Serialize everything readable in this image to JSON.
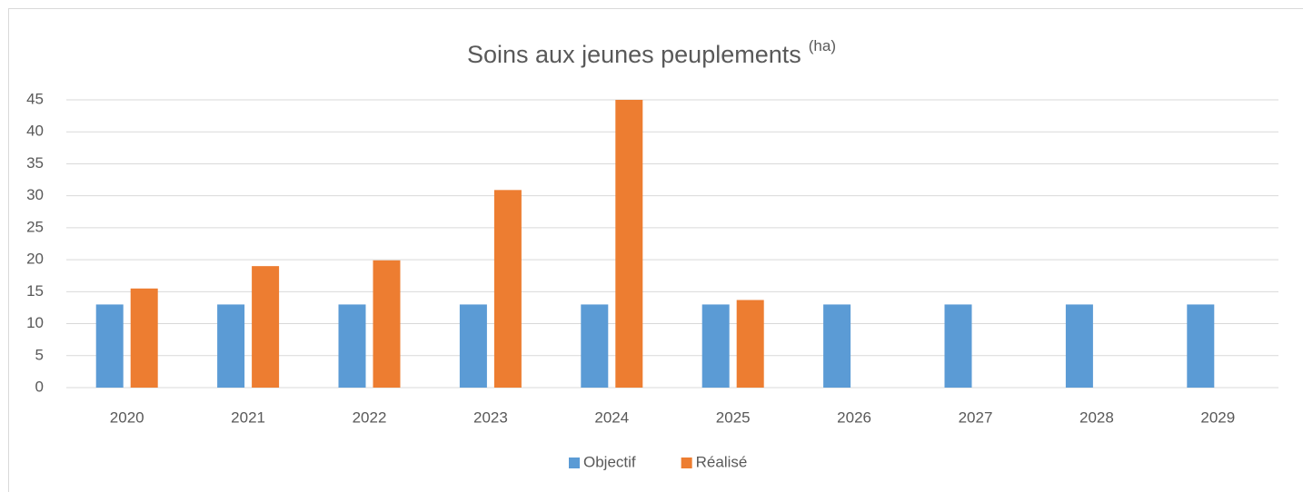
{
  "chart_data": {
    "type": "bar",
    "title": "Soins aux jeunes peuplements",
    "title_unit": "(ha)",
    "categories": [
      "2020",
      "2021",
      "2022",
      "2023",
      "2024",
      "2025",
      "2026",
      "2027",
      "2028",
      "2029"
    ],
    "series": [
      {
        "name": "Objectif",
        "color": "#5b9bd5",
        "values": [
          13,
          13,
          13,
          13,
          13,
          13,
          13,
          13,
          13,
          13
        ]
      },
      {
        "name": "Réalisé",
        "color": "#ed7d31",
        "values": [
          15.5,
          19,
          19.9,
          30.9,
          45,
          13.7,
          null,
          null,
          null,
          null
        ]
      }
    ],
    "ylim": [
      0,
      45
    ],
    "yticks": [
      0,
      5,
      10,
      15,
      20,
      25,
      30,
      35,
      40,
      45
    ],
    "grid": true,
    "legend": "bottom"
  }
}
